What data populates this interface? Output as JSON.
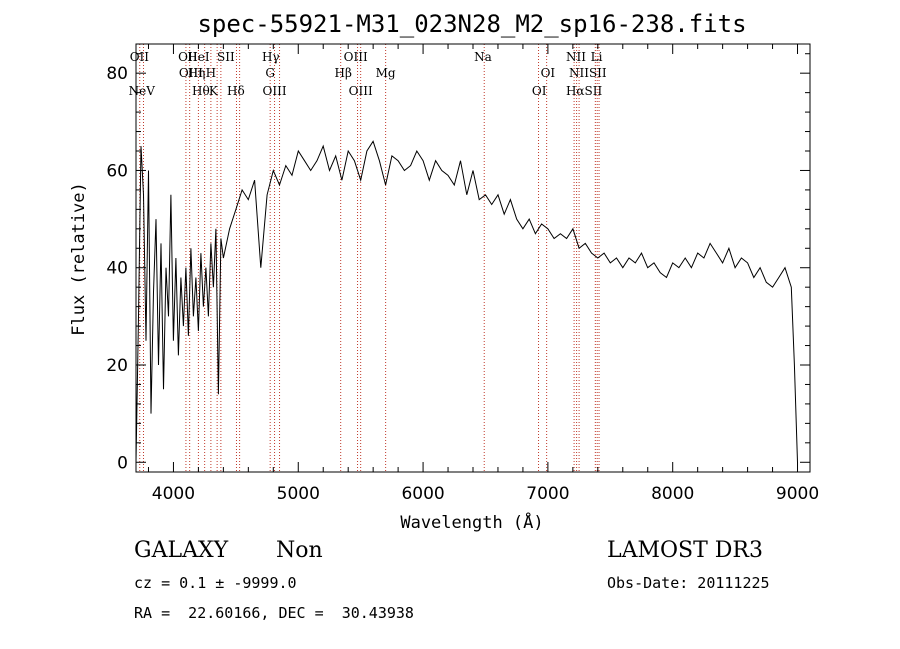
{
  "chart_data": {
    "type": "line",
    "title": "spec-55921-M31_023N28_M2_sp16-238.fits",
    "xlabel": "Wavelength (Å)",
    "ylabel": "Flux (relative)",
    "xlim": [
      3700,
      9100
    ],
    "ylim": [
      -2,
      86
    ],
    "x_ticks": [
      4000,
      5000,
      6000,
      7000,
      8000,
      9000
    ],
    "y_ticks": [
      0,
      20,
      40,
      60,
      80
    ],
    "grid": false,
    "series": [
      {
        "x": [
          3700,
          3720,
          3740,
          3760,
          3780,
          3800,
          3820,
          3840,
          3860,
          3880,
          3900,
          3920,
          3940,
          3960,
          3980,
          4000,
          4020,
          4040,
          4060,
          4080,
          4100,
          4120,
          4140,
          4160,
          4180,
          4200,
          4220,
          4240,
          4260,
          4280,
          4300,
          4320,
          4340,
          4360,
          4380,
          4400,
          4450,
          4500,
          4550,
          4600,
          4650,
          4700,
          4750,
          4800,
          4850,
          4900,
          4950,
          5000,
          5050,
          5100,
          5150,
          5200,
          5250,
          5300,
          5350,
          5400,
          5450,
          5500,
          5550,
          5600,
          5650,
          5700,
          5750,
          5800,
          5850,
          5900,
          5950,
          6000,
          6050,
          6100,
          6150,
          6200,
          6250,
          6300,
          6350,
          6400,
          6450,
          6500,
          6550,
          6600,
          6650,
          6700,
          6750,
          6800,
          6850,
          6900,
          6950,
          7000,
          7050,
          7100,
          7150,
          7200,
          7250,
          7300,
          7350,
          7400,
          7450,
          7500,
          7550,
          7600,
          7650,
          7700,
          7750,
          7800,
          7850,
          7900,
          7950,
          8000,
          8050,
          8100,
          8150,
          8200,
          8250,
          8300,
          8350,
          8400,
          8450,
          8500,
          8550,
          8600,
          8650,
          8700,
          8750,
          8800,
          8850,
          8900,
          8950,
          8975,
          9000
        ],
        "y": [
          0,
          30,
          65,
          55,
          25,
          60,
          10,
          35,
          50,
          20,
          45,
          15,
          40,
          30,
          55,
          25,
          42,
          22,
          38,
          28,
          40,
          26,
          44,
          30,
          38,
          27,
          43,
          32,
          40,
          30,
          45,
          36,
          48,
          14,
          46,
          42,
          48,
          52,
          56,
          54,
          58,
          40,
          55,
          60,
          57,
          61,
          59,
          64,
          62,
          60,
          62,
          65,
          60,
          63,
          58,
          64,
          62,
          58,
          64,
          66,
          62,
          57,
          63,
          62,
          60,
          61,
          64,
          62,
          58,
          62,
          60,
          59,
          57,
          62,
          55,
          60,
          54,
          55,
          53,
          55,
          51,
          54,
          50,
          48,
          50,
          47,
          49,
          48,
          46,
          47,
          46,
          48,
          44,
          45,
          43,
          42,
          43,
          41,
          42,
          40,
          42,
          41,
          43,
          40,
          41,
          39,
          38,
          41,
          40,
          42,
          40,
          43,
          42,
          45,
          43,
          41,
          44,
          40,
          42,
          41,
          38,
          40,
          37,
          36,
          38,
          40,
          36,
          20,
          0
        ]
      }
    ],
    "spectral_lines": [
      {
        "label": "NeV",
        "wave": 3746,
        "row": 3
      },
      {
        "label": "OII",
        "wave": 3727,
        "row": 0
      },
      {
        "label": "OII",
        "wave": 4115,
        "row": 0
      },
      {
        "label": "HeI",
        "wave": 4200,
        "row": 0
      },
      {
        "label": "SII",
        "wave": 4420,
        "row": 0
      },
      {
        "label": "OIII",
        "wave": 4140,
        "row": 1
      },
      {
        "label": "Hη",
        "wave": 4185,
        "row": 1
      },
      {
        "label": "H",
        "wave": 4300,
        "row": 1
      },
      {
        "label": "Hθ",
        "wave": 4220,
        "row": 3
      },
      {
        "label": "K",
        "wave": 4320,
        "row": 3
      },
      {
        "label": "Hδ",
        "wave": 4500,
        "row": 3
      },
      {
        "label": "Hγ",
        "wave": 4780,
        "row": 0
      },
      {
        "label": "G",
        "wave": 4775,
        "row": 1
      },
      {
        "label": "OIII",
        "wave": 4810,
        "row": 3
      },
      {
        "label": "OIII",
        "wave": 5460,
        "row": 0
      },
      {
        "label": "Hβ",
        "wave": 5360,
        "row": 1
      },
      {
        "label": "Mg",
        "wave": 5700,
        "row": 1
      },
      {
        "label": "OIII",
        "wave": 5500,
        "row": 3
      },
      {
        "label": "Na",
        "wave": 6480,
        "row": 0
      },
      {
        "label": "OI",
        "wave": 7000,
        "row": 1
      },
      {
        "label": "OI",
        "wave": 6930,
        "row": 3
      },
      {
        "label": "NII",
        "wave": 7225,
        "row": 0
      },
      {
        "label": "Li",
        "wave": 7390,
        "row": 0
      },
      {
        "label": "NIISII",
        "wave": 7320,
        "row": 1
      },
      {
        "label": "HαSII",
        "wave": 7290,
        "row": 3
      }
    ],
    "line_positions": [
      3730,
      3760,
      4100,
      4130,
      4200,
      4250,
      4300,
      4350,
      4380,
      4505,
      4530,
      4775,
      4810,
      4850,
      5340,
      5475,
      5500,
      5700,
      6490,
      6925,
      6990,
      7210,
      7230,
      7250,
      7380,
      7395,
      7410
    ]
  },
  "footer": {
    "object_class": "GALAXY",
    "subclass": "Non",
    "survey": "LAMOST DR3",
    "cz_line": "cz = 0.1 ± -9999.0",
    "obs_date": "Obs-Date: 20111225",
    "coords": "RA =  22.60166, DEC =  30.43938"
  }
}
